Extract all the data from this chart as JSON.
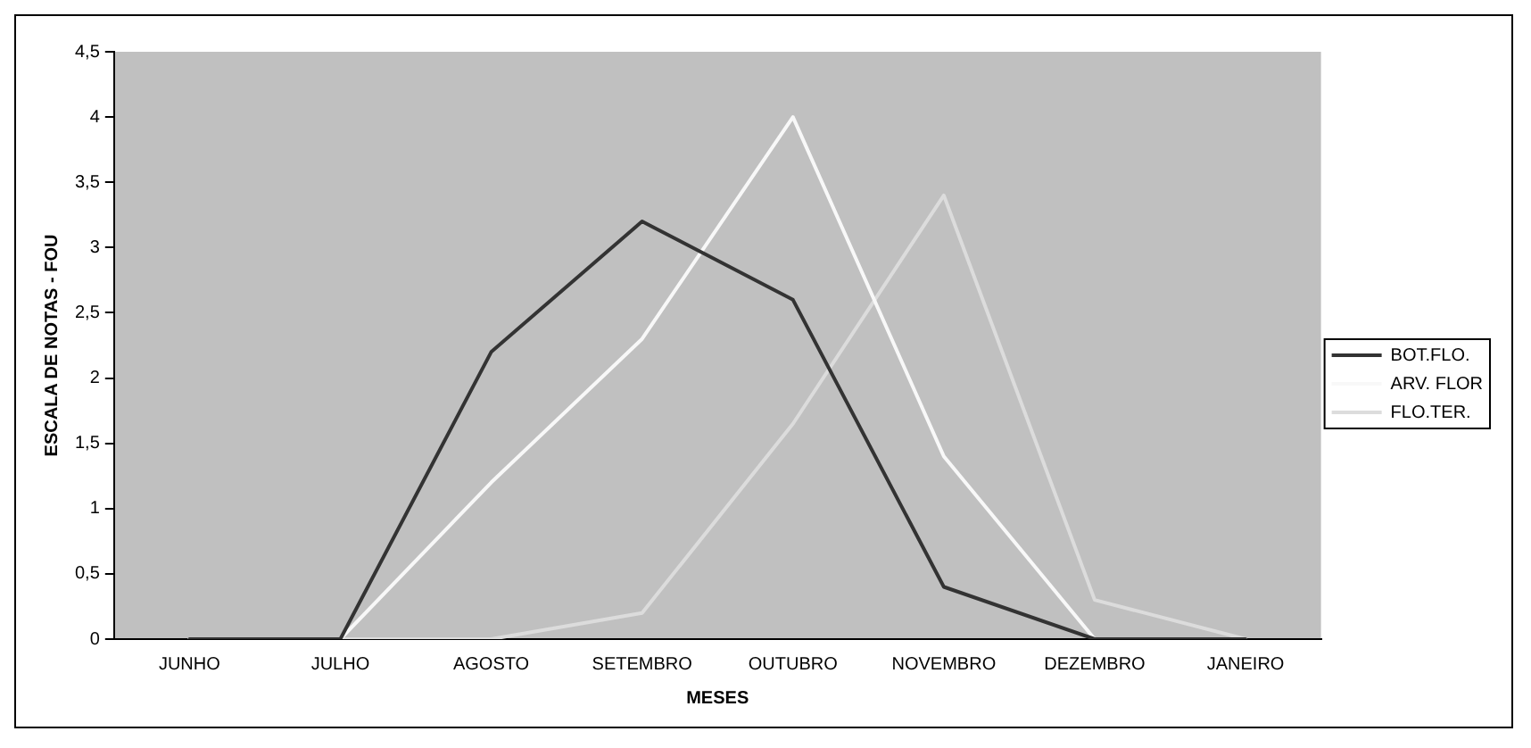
{
  "chart_data": {
    "type": "line",
    "xlabel": "MESES",
    "ylabel": "ESCALA DE NOTAS - FOU",
    "categories": [
      "JUNHO",
      "JULHO",
      "AGOSTO",
      "SETEMBRO",
      "OUTUBRO",
      "NOVEMBRO",
      "DEZEMBRO",
      "JANEIRO"
    ],
    "series": [
      {
        "name": "BOT.FLO.",
        "color": "#333333",
        "values": [
          0,
          0,
          2.2,
          3.2,
          2.6,
          0.4,
          0,
          0
        ]
      },
      {
        "name": "ARV. FLOR",
        "color": "#f8f8f8",
        "values": [
          0,
          0,
          1.2,
          2.3,
          4.0,
          1.4,
          0,
          0
        ]
      },
      {
        "name": "FLO.TER.",
        "color": "#dcdcdc",
        "values": [
          0,
          0,
          0,
          0.2,
          1.65,
          3.4,
          0.3,
          0
        ]
      }
    ],
    "ylim": [
      0,
      4.5
    ],
    "yticks": [
      0,
      {
        "value": 0.5,
        "label": "0,5"
      },
      1,
      {
        "value": 1.5,
        "label": "1,5"
      },
      2,
      {
        "value": 2.5,
        "label": "2,5"
      },
      3,
      {
        "value": 3.5,
        "label": "3,5"
      },
      4,
      {
        "value": 4.5,
        "label": "4,5"
      }
    ],
    "grid": false,
    "legend": "right",
    "marker": "none",
    "line_style": "solid"
  }
}
